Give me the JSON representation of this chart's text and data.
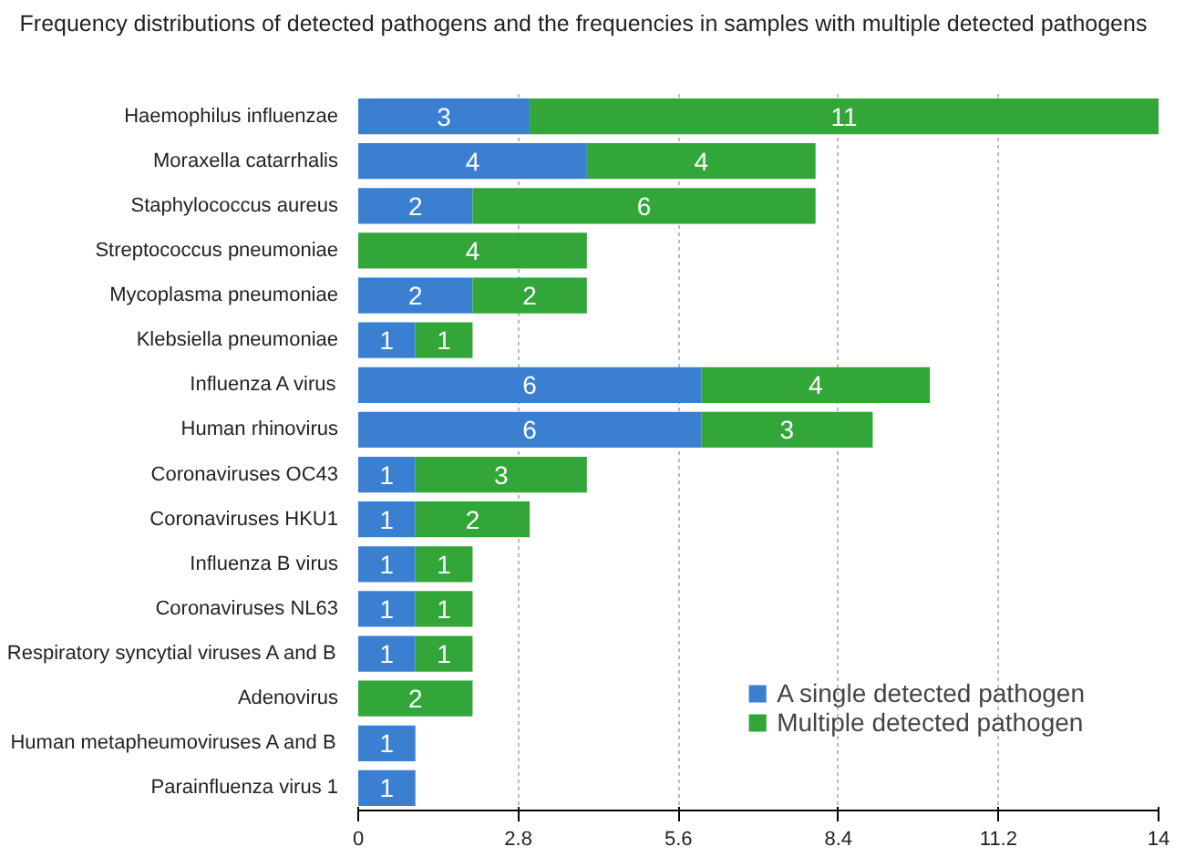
{
  "chart_data": {
    "type": "bar",
    "orientation": "horizontal",
    "stacked": true,
    "title": "Frequency distributions of detected pathogens and the frequencies in samples with multiple detected pathogens",
    "categories": [
      "Haemophilus influenzae",
      "Moraxella catarrhalis",
      "Staphylococcus aureus",
      "Streptococcus pneumoniae",
      "Mycoplasma pneumoniae",
      "Klebsiella pneumoniae",
      "Influenza A virus",
      "Human rhinovirus",
      "Coronaviruses OC43",
      "Coronaviruses HKU1",
      "Influenza B virus",
      "Coronaviruses NL63",
      "Respiratory syncytial viruses A and B",
      "Adenovirus",
      "Human metapheumoviruses A and B",
      "Parainfluenza virus 1"
    ],
    "series": [
      {
        "name": "A single detected pathogen",
        "color": "#3b7fd0",
        "values": [
          3,
          4,
          2,
          null,
          2,
          1,
          6,
          6,
          1,
          1,
          1,
          1,
          1,
          null,
          1,
          1
        ]
      },
      {
        "name": "Multiple detected pathogen",
        "color": "#33a639",
        "values": [
          11,
          4,
          6,
          4,
          2,
          1,
          4,
          3,
          3,
          2,
          1,
          1,
          1,
          2,
          null,
          null
        ]
      }
    ],
    "xlim": [
      0,
      14
    ],
    "xticks": [
      0,
      2.8,
      5.6,
      8.4,
      11.2,
      14
    ],
    "grid": "x",
    "legend": "bottom right",
    "data_labels": true
  }
}
